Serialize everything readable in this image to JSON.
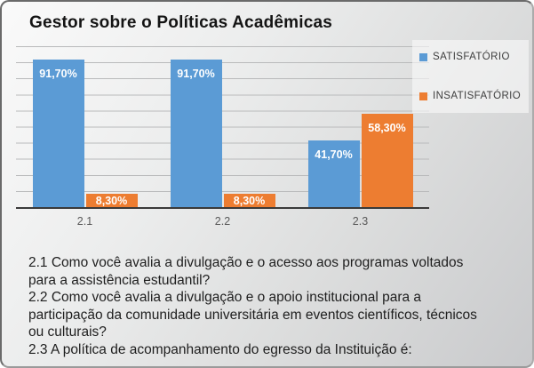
{
  "slide": {
    "background_top": "#fafafa",
    "background_bottom": "#c9cacc",
    "border_color": "#6a6a6a"
  },
  "chart_data": {
    "type": "bar",
    "title": "Gestor sobre o Políticas Acadêmicas",
    "categories": [
      "2.1",
      "2.2",
      "2.3"
    ],
    "series": [
      {
        "name": "SATISFATÓRIO",
        "color": "#5B9BD5",
        "values": [
          91.7,
          91.7,
          41.7
        ],
        "labels": [
          "91,70%",
          "91,70%",
          "41,70%"
        ]
      },
      {
        "name": "INSATISFATÓRIO",
        "color": "#ED7D31",
        "values": [
          8.3,
          8.3,
          58.3
        ],
        "labels": [
          "8,30%",
          "8,30%",
          "58,30%"
        ]
      }
    ],
    "ylim": [
      0,
      100
    ],
    "gridline_step": 10,
    "grid": true,
    "y_axis_labels_visible": false,
    "legend_position": "top-right",
    "value_label_color": "#ffffff",
    "axis_label_color": "#595959"
  },
  "footnotes": [
    "2.1 Como você avalia a divulgação e o acesso aos programas voltados para a assistência estudantil?",
    "2.2 Como você avalia a divulgação e o apoio institucional para a participação da comunidade universitária em eventos científicos, técnicos ou culturais?",
    "2.3 A política de acompanhamento do egresso da Instituição é:"
  ]
}
